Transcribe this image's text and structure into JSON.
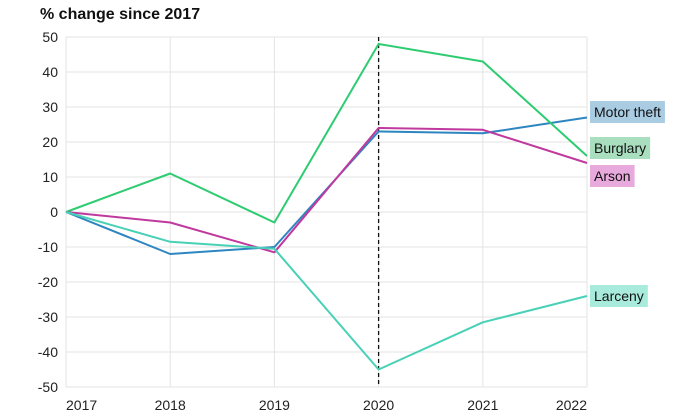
{
  "chart_data": {
    "type": "line",
    "title": "% change since 2017",
    "xlabel": "",
    "ylabel": "",
    "x": [
      "2017",
      "2018",
      "2019",
      "2020",
      "2021",
      "2022"
    ],
    "ylim": [
      -50,
      50
    ],
    "yticks": [
      "50",
      "40",
      "30",
      "20",
      "10",
      "0",
      "-10",
      "-20",
      "-30",
      "-40",
      "-50"
    ],
    "grid": true,
    "legend": "inline-right",
    "reference_line": {
      "x": "2020",
      "style": "dashed"
    },
    "series": [
      {
        "name": "Motor theft",
        "color": "#2e86c1",
        "label_bg": "#a9cce3",
        "values": [
          0,
          -12,
          -10,
          23,
          22.5,
          27
        ]
      },
      {
        "name": "Burglary",
        "color": "#2ecc71",
        "label_bg": "#a9dfbf",
        "values": [
          0,
          11,
          -3,
          48,
          43,
          16
        ]
      },
      {
        "name": "Arson",
        "color": "#c0399f",
        "label_bg": "#e8a9dc",
        "values": [
          0,
          -3,
          -11.5,
          24,
          23.5,
          14
        ]
      },
      {
        "name": "Larceny",
        "color": "#48d1b6",
        "label_bg": "#a8eadb",
        "values": [
          0,
          -8.5,
          -10.5,
          -45,
          -31.5,
          -24
        ]
      }
    ]
  }
}
